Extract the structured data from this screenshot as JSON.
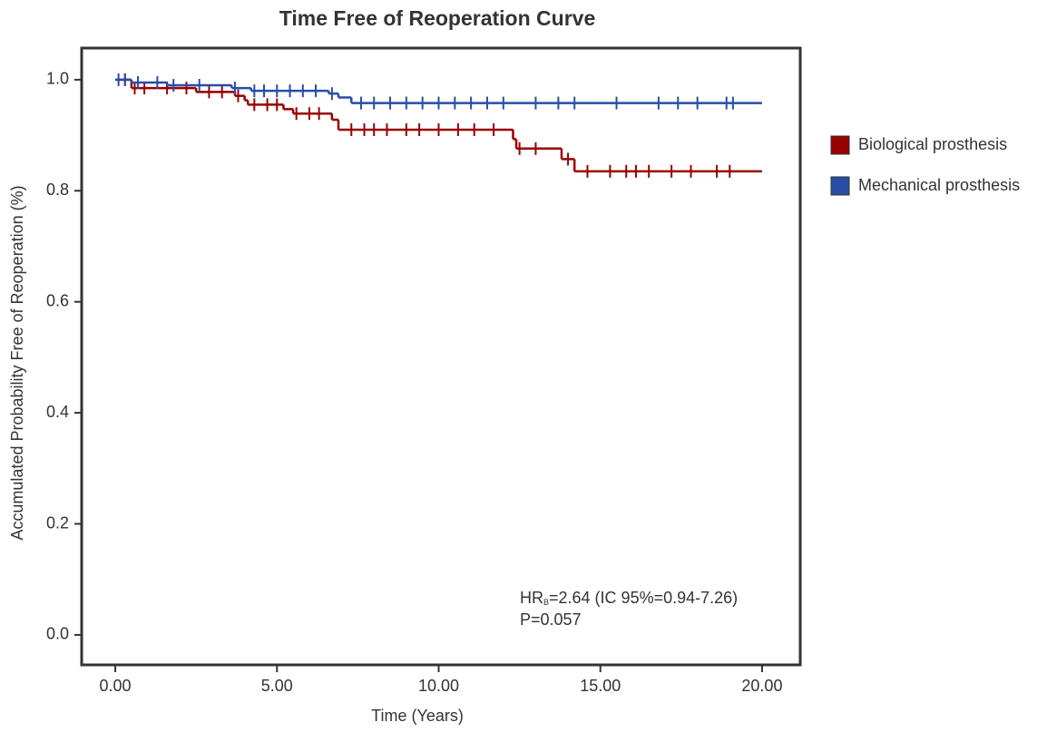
{
  "chart_data": {
    "type": "survival",
    "title": "Time Free of Reoperation Curve",
    "x_label": "Time (Years)",
    "y_label": "Accumulated Probability Free of Reoperation (%)",
    "xlim": [
      -1.04,
      21.18
    ],
    "ylim": [
      -0.054,
      1.057
    ],
    "xticks": [
      {
        "value": 0,
        "label": "0.00"
      },
      {
        "value": 5,
        "label": "5.00"
      },
      {
        "value": 10,
        "label": "10.00"
      },
      {
        "value": 15,
        "label": "15.00"
      },
      {
        "value": 20,
        "label": "20.00"
      }
    ],
    "yticks": [
      {
        "value": 0,
        "label": "0.0"
      },
      0.2,
      0.4,
      0.6,
      0.8,
      {
        "value": 1,
        "label": "1.0"
      }
    ],
    "series": [
      {
        "name": "Biological prosthesis",
        "color": "#990000",
        "x": [
          0,
          0.5,
          2.5,
          3.7,
          4.0,
          4.1,
          5.2,
          5.5,
          6.7,
          6.9,
          12.3,
          12.4,
          13.8,
          14.2,
          20
        ],
        "values": [
          1.0,
          0.985,
          0.978,
          0.971,
          0.963,
          0.955,
          0.947,
          0.939,
          0.928,
          0.91,
          0.893,
          0.876,
          0.857,
          0.835,
          0.835
        ],
        "censored_x": [
          0.3,
          0.6,
          0.9,
          1.6,
          2.2,
          2.9,
          3.3,
          3.8,
          4.3,
          4.7,
          5.0,
          5.6,
          6.0,
          6.3,
          7.3,
          7.7,
          8.0,
          8.4,
          9.0,
          9.4,
          10.0,
          10.6,
          11.1,
          11.7,
          12.5,
          13.0,
          14.0,
          14.6,
          15.3,
          15.8,
          16.1,
          16.5,
          17.2,
          17.8,
          18.6,
          19.0
        ],
        "censored_y": [
          1.0,
          0.985,
          0.985,
          0.985,
          0.985,
          0.978,
          0.978,
          0.971,
          0.955,
          0.955,
          0.955,
          0.939,
          0.939,
          0.939,
          0.91,
          0.91,
          0.91,
          0.91,
          0.91,
          0.91,
          0.91,
          0.91,
          0.91,
          0.91,
          0.876,
          0.876,
          0.857,
          0.835,
          0.835,
          0.835,
          0.835,
          0.835,
          0.835,
          0.835,
          0.835,
          0.835
        ]
      },
      {
        "name": "Mechanical prosthesis",
        "color": "#2a4ca6",
        "x": [
          0,
          0.5,
          1.6,
          3.6,
          4.2,
          6.6,
          6.9,
          7.3,
          20
        ],
        "values": [
          1.0,
          0.995,
          0.99,
          0.985,
          0.98,
          0.975,
          0.968,
          0.958,
          0.958
        ],
        "censored_x": [
          0.1,
          0.3,
          0.7,
          1.3,
          1.8,
          2.6,
          3.7,
          4.3,
          4.6,
          5.0,
          5.4,
          5.8,
          6.2,
          6.7,
          7.6,
          8.0,
          8.5,
          9.0,
          9.5,
          10.0,
          10.5,
          11.0,
          11.5,
          12.0,
          13.0,
          13.7,
          14.2,
          15.5,
          16.8,
          17.4,
          18.0,
          18.9,
          19.1
        ],
        "censored_y": [
          1.0,
          1.0,
          0.995,
          0.995,
          0.99,
          0.99,
          0.985,
          0.98,
          0.98,
          0.98,
          0.98,
          0.98,
          0.98,
          0.975,
          0.958,
          0.958,
          0.958,
          0.958,
          0.958,
          0.958,
          0.958,
          0.958,
          0.958,
          0.958,
          0.958,
          0.958,
          0.958,
          0.958,
          0.958,
          0.958,
          0.958,
          0.958,
          0.958
        ]
      }
    ],
    "annotation": {
      "hr_prefix": "HR",
      "hr_subscript": "B",
      "hr_text": "=2.64 (IC 95%=0.94-7.26)",
      "p": "P=0.057"
    }
  }
}
